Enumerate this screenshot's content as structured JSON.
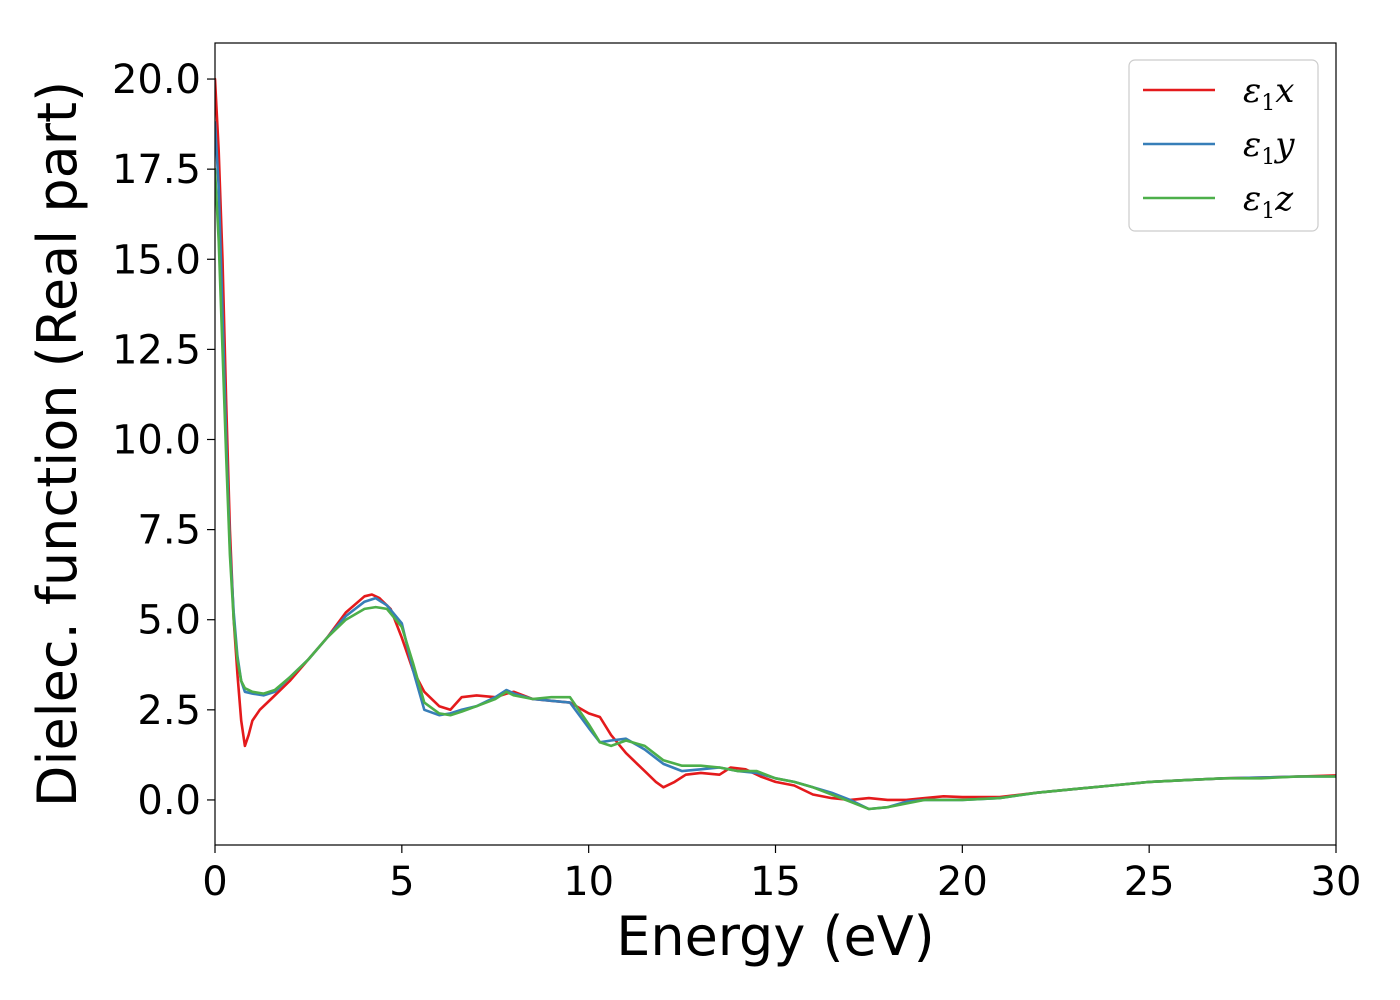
{
  "chart_data": {
    "type": "line",
    "title": "",
    "xlabel": "Energy (eV)",
    "ylabel": "Dielec. function (Real part)",
    "xlim": [
      0,
      30
    ],
    "ylim": [
      -1.25,
      21.0
    ],
    "xticks": [
      0,
      5,
      10,
      15,
      20,
      25,
      30
    ],
    "xtick_labels": [
      "0",
      "5",
      "10",
      "15",
      "20",
      "25",
      "30"
    ],
    "yticks": [
      0.0,
      2.5,
      5.0,
      7.5,
      10.0,
      12.5,
      15.0,
      17.5,
      20.0
    ],
    "ytick_labels": [
      "0.0",
      "2.5",
      "5.0",
      "7.5",
      "10.0",
      "12.5",
      "15.0",
      "17.5",
      "20.0"
    ],
    "grid": false,
    "legend_position": "top-right",
    "series": [
      {
        "name": "ε1x",
        "name_base": "ε",
        "name_sub": "1",
        "name_var": "x",
        "color": "#e41a1c",
        "x": [
          0.0,
          0.1,
          0.2,
          0.3,
          0.4,
          0.5,
          0.6,
          0.7,
          0.8,
          0.9,
          1.0,
          1.2,
          1.5,
          2.0,
          2.5,
          3.0,
          3.5,
          4.0,
          4.2,
          4.4,
          4.7,
          5.0,
          5.3,
          5.6,
          6.0,
          6.3,
          6.6,
          7.0,
          7.5,
          7.8,
          8.0,
          8.5,
          9.0,
          9.5,
          10.0,
          10.3,
          10.6,
          11.0,
          11.5,
          11.8,
          12.0,
          12.3,
          12.6,
          13.0,
          13.5,
          13.8,
          14.2,
          14.6,
          15.0,
          15.5,
          16.0,
          16.5,
          17.0,
          17.5,
          18.0,
          18.5,
          19.0,
          19.5,
          20.0,
          20.5,
          21.0,
          22.0,
          23.0,
          24.0,
          25.0,
          26.0,
          27.0,
          28.0,
          29.0,
          30.0
        ],
        "y": [
          20.0,
          18.0,
          15.0,
          11.0,
          7.5,
          5.0,
          3.5,
          2.2,
          1.5,
          1.8,
          2.2,
          2.5,
          2.8,
          3.3,
          3.9,
          4.5,
          5.2,
          5.65,
          5.7,
          5.6,
          5.3,
          4.5,
          3.6,
          3.0,
          2.6,
          2.5,
          2.85,
          2.9,
          2.85,
          2.95,
          3.0,
          2.8,
          2.75,
          2.7,
          2.4,
          2.3,
          1.8,
          1.3,
          0.8,
          0.5,
          0.35,
          0.5,
          0.7,
          0.75,
          0.7,
          0.9,
          0.85,
          0.65,
          0.5,
          0.4,
          0.15,
          0.05,
          0.0,
          0.05,
          0.0,
          0.0,
          0.05,
          0.1,
          0.08,
          0.08,
          0.08,
          0.2,
          0.3,
          0.4,
          0.5,
          0.55,
          0.6,
          0.62,
          0.65,
          0.68
        ]
      },
      {
        "name": "ε1y",
        "name_base": "ε",
        "name_sub": "1",
        "name_var": "y",
        "color": "#377eb8",
        "x": [
          0.0,
          0.1,
          0.2,
          0.3,
          0.4,
          0.5,
          0.6,
          0.7,
          0.8,
          1.0,
          1.3,
          1.6,
          2.0,
          2.5,
          3.0,
          3.5,
          4.0,
          4.3,
          4.6,
          5.0,
          5.3,
          5.6,
          6.0,
          6.3,
          6.6,
          7.0,
          7.5,
          7.8,
          8.0,
          8.5,
          9.0,
          9.5,
          10.0,
          10.3,
          10.6,
          11.0,
          11.5,
          12.0,
          12.5,
          13.0,
          13.5,
          14.0,
          14.5,
          15.0,
          15.5,
          16.0,
          16.5,
          17.0,
          17.5,
          18.0,
          18.5,
          19.0,
          20.0,
          21.0,
          22.0,
          23.0,
          24.0,
          25.0,
          26.0,
          27.0,
          28.0,
          29.0,
          30.0
        ],
        "y": [
          18.8,
          17.0,
          13.5,
          10.0,
          7.0,
          5.2,
          4.0,
          3.3,
          3.0,
          2.95,
          2.9,
          3.0,
          3.4,
          3.9,
          4.5,
          5.1,
          5.5,
          5.6,
          5.4,
          4.9,
          3.6,
          2.5,
          2.35,
          2.4,
          2.5,
          2.6,
          2.85,
          3.05,
          2.95,
          2.8,
          2.75,
          2.7,
          2.0,
          1.6,
          1.65,
          1.7,
          1.4,
          1.0,
          0.8,
          0.85,
          0.9,
          0.8,
          0.75,
          0.6,
          0.5,
          0.35,
          0.2,
          0.0,
          -0.25,
          -0.2,
          -0.05,
          0.0,
          0.0,
          0.05,
          0.2,
          0.3,
          0.4,
          0.5,
          0.55,
          0.6,
          0.62,
          0.65,
          0.65
        ]
      },
      {
        "name": "ε1z",
        "name_base": "ε",
        "name_sub": "1",
        "name_var": "z",
        "color": "#4daf4a",
        "x": [
          0.0,
          0.1,
          0.2,
          0.3,
          0.4,
          0.5,
          0.6,
          0.7,
          0.8,
          1.0,
          1.3,
          1.6,
          2.0,
          2.5,
          3.0,
          3.5,
          4.0,
          4.3,
          4.6,
          5.0,
          5.3,
          5.6,
          6.0,
          6.3,
          6.6,
          7.0,
          7.5,
          7.8,
          8.0,
          8.5,
          9.0,
          9.5,
          10.0,
          10.3,
          10.6,
          11.0,
          11.5,
          12.0,
          12.5,
          13.0,
          13.5,
          14.0,
          14.5,
          15.0,
          15.5,
          16.0,
          16.5,
          17.0,
          17.5,
          18.0,
          18.5,
          19.0,
          20.0,
          21.0,
          22.0,
          23.0,
          24.0,
          25.0,
          26.0,
          27.0,
          28.0,
          29.0,
          30.0
        ],
        "y": [
          17.5,
          15.5,
          12.5,
          9.5,
          6.8,
          5.0,
          3.9,
          3.3,
          3.1,
          3.0,
          2.95,
          3.05,
          3.4,
          3.9,
          4.5,
          5.0,
          5.3,
          5.35,
          5.3,
          4.8,
          3.8,
          2.7,
          2.4,
          2.35,
          2.45,
          2.6,
          2.8,
          3.0,
          2.9,
          2.8,
          2.85,
          2.85,
          2.1,
          1.6,
          1.5,
          1.65,
          1.5,
          1.1,
          0.95,
          0.95,
          0.9,
          0.8,
          0.8,
          0.6,
          0.5,
          0.35,
          0.15,
          -0.05,
          -0.25,
          -0.2,
          -0.1,
          0.0,
          0.0,
          0.05,
          0.2,
          0.3,
          0.4,
          0.5,
          0.55,
          0.6,
          0.6,
          0.65,
          0.65
        ]
      }
    ]
  }
}
